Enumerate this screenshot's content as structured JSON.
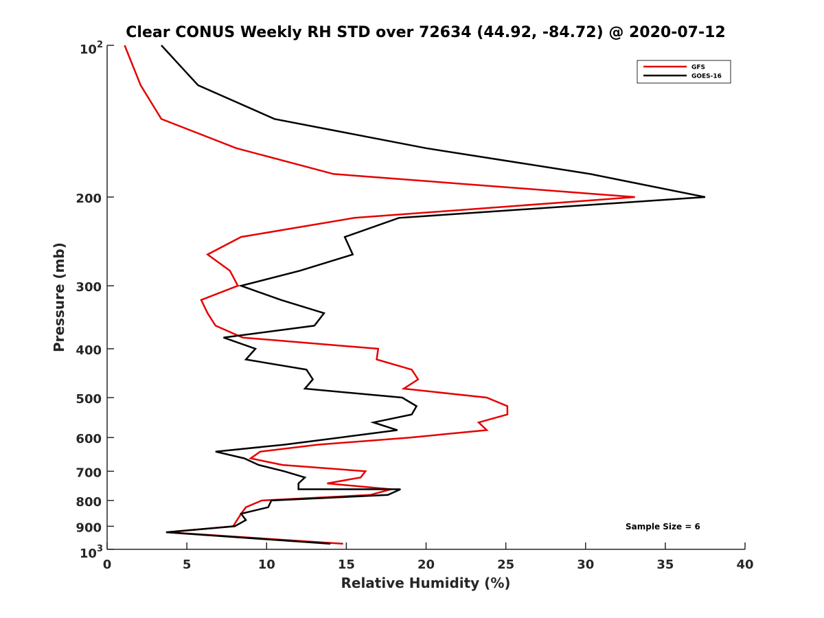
{
  "chart_data": {
    "type": "line",
    "title": "Clear CONUS Weekly RH STD over 72634 (44.92, -84.72) @ 2020-07-12",
    "xlabel": "Relative Humidity (%)",
    "ylabel": "Pressure (mb)",
    "xlim": [
      0,
      40
    ],
    "ylim": [
      100,
      1000
    ],
    "yscale": "log",
    "yreversed": true,
    "grid": false,
    "xticks": [
      0,
      5,
      10,
      15,
      20,
      25,
      30,
      35,
      40
    ],
    "xtick_labels": [
      "0",
      "5",
      "10",
      "15",
      "20",
      "25",
      "30",
      "35",
      "40"
    ],
    "yticks": [
      100,
      200,
      300,
      400,
      500,
      600,
      700,
      800,
      900,
      1000
    ],
    "ytick_labels": [
      {
        "base": "10",
        "exp": "2"
      },
      {
        "base": "200",
        "exp": ""
      },
      {
        "base": "300",
        "exp": ""
      },
      {
        "base": "400",
        "exp": ""
      },
      {
        "base": "500",
        "exp": ""
      },
      {
        "base": "600",
        "exp": ""
      },
      {
        "base": "700",
        "exp": ""
      },
      {
        "base": "800",
        "exp": ""
      },
      {
        "base": "900",
        "exp": ""
      },
      {
        "base": "10",
        "exp": "3"
      }
    ],
    "legend_position": "top-right",
    "annotation": "Sample Size = 6",
    "series": [
      {
        "name": "GFS",
        "color": "#e60000",
        "points": [
          [
            1.1,
            100
          ],
          [
            2.1,
            120
          ],
          [
            3.4,
            140
          ],
          [
            8.1,
            160
          ],
          [
            14.2,
            180
          ],
          [
            33.1,
            200
          ],
          [
            15.5,
            220
          ],
          [
            8.4,
            240
          ],
          [
            6.3,
            260
          ],
          [
            7.7,
            280
          ],
          [
            8.2,
            300
          ],
          [
            5.9,
            320
          ],
          [
            6.3,
            340
          ],
          [
            6.8,
            360
          ],
          [
            8.5,
            380
          ],
          [
            17.0,
            400
          ],
          [
            16.9,
            420
          ],
          [
            19.1,
            440
          ],
          [
            19.5,
            460
          ],
          [
            18.6,
            480
          ],
          [
            23.8,
            500
          ],
          [
            25.1,
            520
          ],
          [
            25.1,
            540
          ],
          [
            23.3,
            560
          ],
          [
            23.8,
            580
          ],
          [
            19.0,
            600
          ],
          [
            13.2,
            620
          ],
          [
            9.6,
            640
          ],
          [
            9.0,
            660
          ],
          [
            11.0,
            680
          ],
          [
            16.2,
            700
          ],
          [
            15.9,
            720
          ],
          [
            13.8,
            740
          ],
          [
            17.8,
            760
          ],
          [
            16.5,
            780
          ],
          [
            9.7,
            800
          ],
          [
            8.7,
            825
          ],
          [
            8.4,
            850
          ],
          [
            7.9,
            900
          ],
          [
            3.8,
            925
          ],
          [
            14.8,
            975
          ]
        ]
      },
      {
        "name": "GOES-16",
        "color": "#000000",
        "points": [
          [
            3.4,
            100
          ],
          [
            5.7,
            120
          ],
          [
            10.5,
            140
          ],
          [
            20.0,
            160
          ],
          [
            30.3,
            180
          ],
          [
            37.5,
            200
          ],
          [
            18.3,
            220
          ],
          [
            14.9,
            240
          ],
          [
            15.4,
            260
          ],
          [
            12.1,
            280
          ],
          [
            8.4,
            300
          ],
          [
            10.9,
            320
          ],
          [
            13.6,
            340
          ],
          [
            13.0,
            360
          ],
          [
            7.3,
            380
          ],
          [
            9.3,
            400
          ],
          [
            8.7,
            420
          ],
          [
            12.5,
            440
          ],
          [
            12.9,
            460
          ],
          [
            12.4,
            480
          ],
          [
            18.5,
            500
          ],
          [
            19.4,
            520
          ],
          [
            19.1,
            540
          ],
          [
            16.7,
            560
          ],
          [
            18.2,
            580
          ],
          [
            14.6,
            600
          ],
          [
            11.1,
            620
          ],
          [
            6.8,
            640
          ],
          [
            8.6,
            660
          ],
          [
            9.5,
            680
          ],
          [
            11.1,
            700
          ],
          [
            12.4,
            720
          ],
          [
            12.0,
            740
          ],
          [
            12.0,
            760
          ],
          [
            18.4,
            760
          ],
          [
            17.6,
            780
          ],
          [
            10.3,
            800
          ],
          [
            10.1,
            825
          ],
          [
            8.4,
            850
          ],
          [
            8.7,
            875
          ],
          [
            8.0,
            900
          ],
          [
            3.7,
            925
          ],
          [
            14.0,
            975
          ]
        ]
      }
    ]
  }
}
